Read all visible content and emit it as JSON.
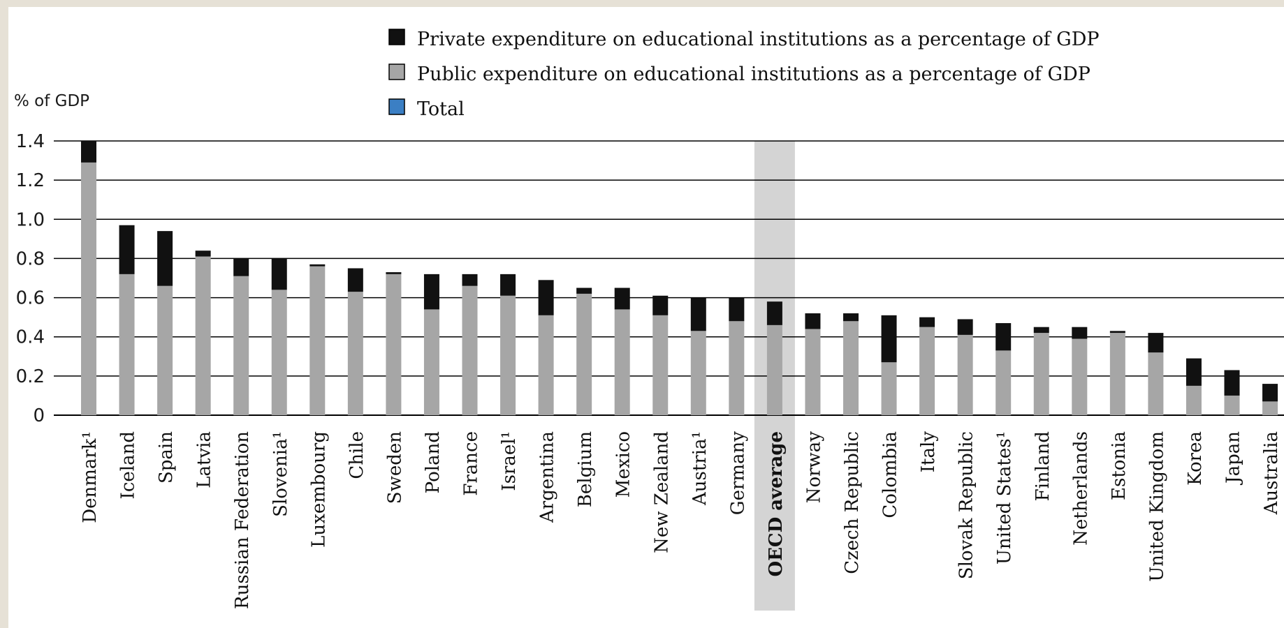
{
  "chart_data": {
    "type": "bar",
    "stacked": true,
    "title": "",
    "xlabel": "",
    "ylabel": "% of GDP",
    "ylim": [
      0,
      1.4
    ],
    "yticks": [
      "0",
      "0.2",
      "0.4",
      "0.6",
      "0.8",
      "1.0",
      "1.2",
      "1.4"
    ],
    "grid": true,
    "legend_position": "top",
    "highlight_category": "OECD average",
    "categories": [
      "Denmark¹",
      "Iceland",
      "Spain",
      "Latvia",
      "Russian Federation",
      "Slovenia¹",
      "Luxembourg",
      "Chile",
      "Sweden",
      "Poland",
      "France",
      "Israel¹",
      "Argentina",
      "Belgium",
      "Mexico",
      "New Zealand",
      "Austria¹",
      "Germany",
      "OECD average",
      "Norway",
      "Czech Republic",
      "Colombia",
      "Italy",
      "Slovak Republic",
      "United States¹",
      "Finland",
      "Netherlands",
      "Estonia",
      "United Kingdom",
      "Korea",
      "Japan",
      "Australia"
    ],
    "series": [
      {
        "name": "Public expenditure on educational institutions as a percentage of GDP",
        "color": "#a6a6a6",
        "values": [
          1.29,
          0.72,
          0.66,
          0.81,
          0.71,
          0.64,
          0.76,
          0.63,
          0.72,
          0.54,
          0.66,
          0.61,
          0.51,
          0.62,
          0.54,
          0.51,
          0.43,
          0.48,
          0.46,
          0.44,
          0.48,
          0.27,
          0.45,
          0.41,
          0.33,
          0.42,
          0.39,
          0.42,
          0.32,
          0.15,
          0.1,
          0.07
        ]
      },
      {
        "name": "Private expenditure on educational institutions as a percentage of GDP",
        "color": "#111111",
        "values": [
          0.11,
          0.25,
          0.28,
          0.03,
          0.09,
          0.16,
          0.01,
          0.12,
          0.01,
          0.18,
          0.06,
          0.11,
          0.18,
          0.03,
          0.11,
          0.1,
          0.17,
          0.12,
          0.12,
          0.08,
          0.04,
          0.24,
          0.05,
          0.08,
          0.14,
          0.03,
          0.06,
          0.01,
          0.1,
          0.14,
          0.13,
          0.09
        ]
      }
    ],
    "legend": [
      {
        "label": "Private expenditure on educational institutions as a percentage of GDP",
        "color": "#111111"
      },
      {
        "label": "Public expenditure on educational institutions as a percentage of GDP",
        "color": "#a6a6a6"
      },
      {
        "label": "Total",
        "color": "#3b7fc4"
      }
    ]
  }
}
